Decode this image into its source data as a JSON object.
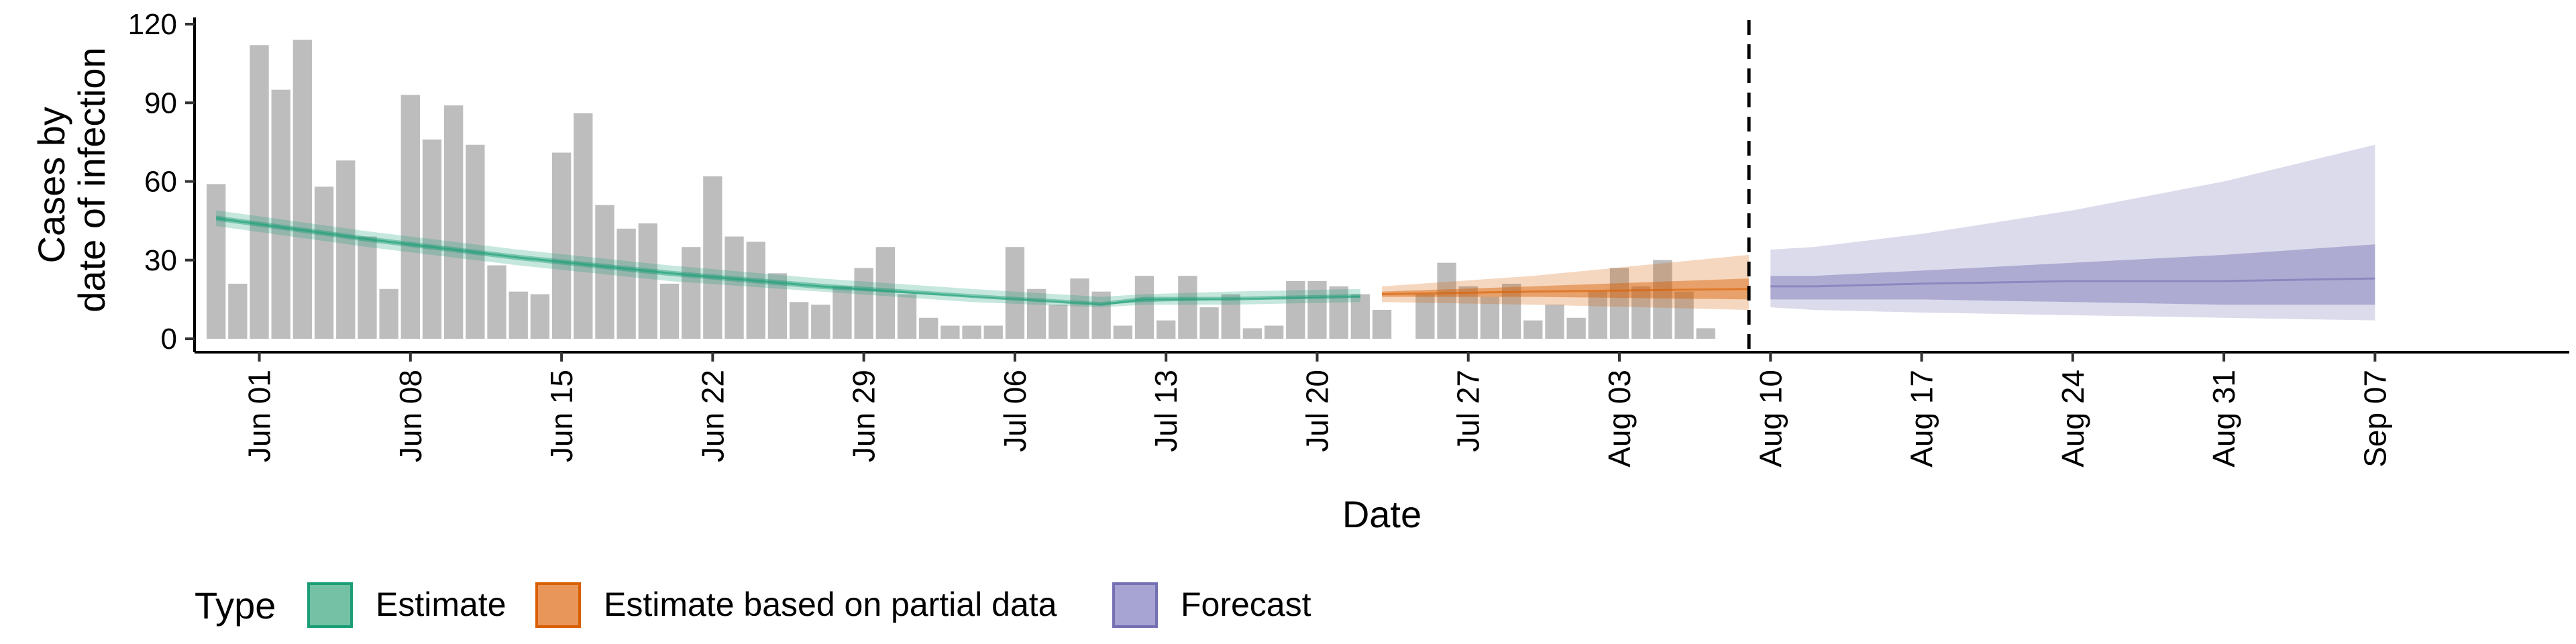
{
  "chart_data": {
    "type": "bar",
    "xlabel": "Date",
    "ylabel": [
      "Cases by",
      "date of infection"
    ],
    "ylim": [
      0,
      120
    ],
    "y_ticks": [
      0,
      30,
      60,
      90,
      120
    ],
    "x_range": [
      "2020-05-29",
      "2020-09-16"
    ],
    "x_ticks": [
      {
        "date": "2020-06-01",
        "label": "Jun 01"
      },
      {
        "date": "2020-06-08",
        "label": "Jun 08"
      },
      {
        "date": "2020-06-15",
        "label": "Jun 15"
      },
      {
        "date": "2020-06-22",
        "label": "Jun 22"
      },
      {
        "date": "2020-06-29",
        "label": "Jun 29"
      },
      {
        "date": "2020-07-06",
        "label": "Jul 06"
      },
      {
        "date": "2020-07-13",
        "label": "Jul 13"
      },
      {
        "date": "2020-07-20",
        "label": "Jul 20"
      },
      {
        "date": "2020-07-27",
        "label": "Jul 27"
      },
      {
        "date": "2020-08-03",
        "label": "Aug 03"
      },
      {
        "date": "2020-08-10",
        "label": "Aug 10"
      },
      {
        "date": "2020-08-17",
        "label": "Aug 17"
      },
      {
        "date": "2020-08-24",
        "label": "Aug 24"
      },
      {
        "date": "2020-08-31",
        "label": "Aug 31"
      },
      {
        "date": "2020-09-07",
        "label": "Sep 07"
      }
    ],
    "vline_date": "2020-08-09",
    "bars": {
      "start_date": "2020-05-30",
      "color": "#bdbdbd",
      "values": [
        59,
        21,
        112,
        95,
        114,
        58,
        68,
        39,
        19,
        93,
        76,
        89,
        74,
        28,
        18,
        17,
        71,
        86,
        51,
        42,
        44,
        21,
        35,
        62,
        39,
        37,
        25,
        14,
        13,
        20,
        27,
        35,
        17,
        8,
        5,
        5,
        5,
        35,
        19,
        13,
        23,
        18,
        5,
        24,
        7,
        24,
        12,
        17,
        4,
        5,
        22,
        22,
        20,
        17,
        11,
        0,
        17,
        29,
        20,
        16,
        21,
        7,
        13,
        8,
        18,
        27,
        20,
        30,
        18,
        4
      ]
    },
    "series": [
      {
        "name": "Estimate",
        "color": "#1b9e77",
        "points": [
          {
            "date": "2020-05-30",
            "lo90": 43,
            "lo50": 45,
            "median": 46,
            "hi50": 47,
            "hi90": 49
          },
          {
            "date": "2020-06-06",
            "lo90": 35,
            "lo50": 37,
            "median": 38,
            "hi50": 39,
            "hi90": 41
          },
          {
            "date": "2020-06-13",
            "lo90": 28,
            "lo50": 30,
            "median": 31,
            "hi50": 32,
            "hi90": 34
          },
          {
            "date": "2020-06-20",
            "lo90": 22,
            "lo50": 24,
            "median": 25,
            "hi50": 26,
            "hi90": 28
          },
          {
            "date": "2020-06-27",
            "lo90": 18,
            "lo50": 19,
            "median": 20,
            "hi50": 21,
            "hi90": 23
          },
          {
            "date": "2020-07-04",
            "lo90": 14,
            "lo50": 16,
            "median": 16,
            "hi50": 17,
            "hi90": 19
          },
          {
            "date": "2020-07-10",
            "lo90": 12,
            "lo50": 13,
            "median": 13,
            "hi50": 14,
            "hi90": 16
          },
          {
            "date": "2020-07-12",
            "lo90": 13,
            "lo50": 14,
            "median": 15,
            "hi50": 16,
            "hi90": 17
          },
          {
            "date": "2020-07-16",
            "lo90": 13,
            "lo50": 15,
            "median": 15,
            "hi50": 16,
            "hi90": 18
          },
          {
            "date": "2020-07-22",
            "lo90": 14,
            "lo50": 16,
            "median": 16,
            "hi50": 17,
            "hi90": 19
          }
        ]
      },
      {
        "name": "Estimate based on partial data",
        "color": "#d95f02",
        "points": [
          {
            "date": "2020-07-23",
            "lo90": 14,
            "lo50": 16,
            "median": 17,
            "hi50": 18,
            "hi90": 20
          },
          {
            "date": "2020-07-30",
            "lo90": 13,
            "lo50": 16,
            "median": 18,
            "hi50": 20,
            "hi90": 24
          },
          {
            "date": "2020-08-09",
            "lo90": 11,
            "lo50": 15,
            "median": 19,
            "hi50": 23,
            "hi90": 32
          }
        ]
      },
      {
        "name": "Forecast",
        "color": "#7570b3",
        "points": [
          {
            "date": "2020-08-10",
            "lo90": 12,
            "lo50": 15,
            "median": 20,
            "hi50": 24,
            "hi90": 34
          },
          {
            "date": "2020-08-12",
            "lo90": 11,
            "lo50": 15,
            "median": 20,
            "hi50": 24,
            "hi90": 35
          },
          {
            "date": "2020-08-17",
            "lo90": 10,
            "lo50": 15,
            "median": 21,
            "hi50": 26,
            "hi90": 40
          },
          {
            "date": "2020-08-24",
            "lo90": 9,
            "lo50": 14,
            "median": 22,
            "hi50": 29,
            "hi90": 49
          },
          {
            "date": "2020-08-31",
            "lo90": 8,
            "lo50": 13,
            "median": 22,
            "hi50": 32,
            "hi90": 60
          },
          {
            "date": "2020-09-07",
            "lo90": 7,
            "lo50": 13,
            "median": 23,
            "hi50": 36,
            "hi90": 74
          }
        ]
      }
    ],
    "legend": {
      "title": "Type",
      "placement": "bottom",
      "items": [
        {
          "label": "Estimate",
          "fill": "#74c1a5",
          "stroke": "#1b9e77"
        },
        {
          "label": "Estimate based on partial data",
          "fill": "#e8965a",
          "stroke": "#d95f02"
        },
        {
          "label": "Forecast",
          "fill": "#a7a3d3",
          "stroke": "#7570b3"
        }
      ]
    }
  }
}
